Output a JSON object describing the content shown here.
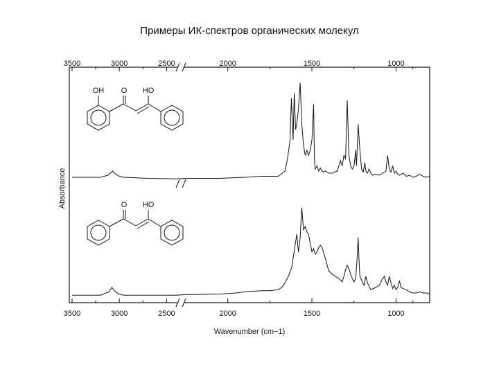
{
  "page": {
    "title": "Примеры ИК-спектров органических молекул"
  },
  "chart_data": {
    "type": "line",
    "title": "Примеры ИК-спектров органических молекул",
    "xlabel": "Wavenumber (cm−1)",
    "ylabel": "Absorbance",
    "x_ticks": [
      "3500",
      "3000",
      "2500",
      "2000",
      "1500",
      "1000"
    ],
    "x_tick_values": [
      3500,
      3000,
      2500,
      2000,
      1500,
      1000
    ],
    "axis_break_between": [
      2400,
      2250
    ],
    "xlim": [
      3500,
      800
    ],
    "grid": false,
    "series": [
      {
        "molecule": {
          "labels": [
            "OH",
            "O",
            "HO"
          ]
        },
        "x": [
          3500,
          3200,
          3120,
          3070,
          3040,
          3000,
          2950,
          2700,
          2400,
          2250,
          2050,
          1900,
          1800,
          1700,
          1660,
          1645,
          1630,
          1622,
          1612,
          1605,
          1597,
          1590,
          1580,
          1570,
          1560,
          1550,
          1540,
          1530,
          1520,
          1510,
          1500,
          1490,
          1485,
          1480,
          1470,
          1460,
          1450,
          1440,
          1430,
          1420,
          1400,
          1380,
          1350,
          1330,
          1320,
          1310,
          1300,
          1290,
          1280,
          1270,
          1260,
          1250,
          1240,
          1235,
          1225,
          1215,
          1205,
          1200,
          1195,
          1185,
          1180,
          1170,
          1160,
          1150,
          1140,
          1120,
          1100,
          1080,
          1060,
          1050,
          1040,
          1030,
          1020,
          1010,
          1000,
          990,
          980,
          960,
          940,
          920,
          900,
          880,
          860,
          840,
          820,
          800
        ],
        "y": [
          0.04,
          0.04,
          0.06,
          0.1,
          0.07,
          0.05,
          0.04,
          0.03,
          0.025,
          0.03,
          0.03,
          0.04,
          0.05,
          0.05,
          0.1,
          0.22,
          0.4,
          0.8,
          0.4,
          0.85,
          0.5,
          0.55,
          0.7,
          0.95,
          0.55,
          0.35,
          0.25,
          0.3,
          0.25,
          0.3,
          0.4,
          0.74,
          0.2,
          0.12,
          0.15,
          0.1,
          0.13,
          0.1,
          0.09,
          0.1,
          0.08,
          0.08,
          0.1,
          0.2,
          0.15,
          0.25,
          0.22,
          0.78,
          0.25,
          0.15,
          0.12,
          0.15,
          0.3,
          0.15,
          0.55,
          0.3,
          0.12,
          0.1,
          0.09,
          0.18,
          0.1,
          0.08,
          0.12,
          0.08,
          0.06,
          0.07,
          0.06,
          0.08,
          0.1,
          0.25,
          0.12,
          0.09,
          0.15,
          0.08,
          0.1,
          0.07,
          0.06,
          0.08,
          0.05,
          0.06,
          0.04,
          0.05,
          0.07,
          0.05,
          0.04,
          0.05
        ]
      },
      {
        "molecule": {
          "labels": [
            "O",
            "HO"
          ]
        },
        "x": [
          3500,
          3200,
          3110,
          3080,
          3060,
          3040,
          3000,
          2950,
          2700,
          2400,
          2250,
          2050,
          1950,
          1900,
          1800,
          1750,
          1700,
          1680,
          1660,
          1640,
          1620,
          1600,
          1590,
          1580,
          1570,
          1560,
          1550,
          1540,
          1530,
          1520,
          1510,
          1500,
          1490,
          1480,
          1470,
          1460,
          1450,
          1440,
          1420,
          1400,
          1380,
          1360,
          1340,
          1320,
          1310,
          1300,
          1290,
          1280,
          1270,
          1260,
          1250,
          1240,
          1235,
          1230,
          1225,
          1220,
          1215,
          1200,
          1190,
          1180,
          1170,
          1150,
          1120,
          1100,
          1080,
          1070,
          1060,
          1050,
          1040,
          1030,
          1020,
          1010,
          1000,
          990,
          980,
          970,
          960,
          940,
          920,
          900,
          880,
          860,
          840,
          820,
          800
        ],
        "y": [
          0.03,
          0.03,
          0.06,
          0.1,
          0.08,
          0.06,
          0.04,
          0.03,
          0.03,
          0.03,
          0.035,
          0.04,
          0.05,
          0.06,
          0.07,
          0.07,
          0.08,
          0.1,
          0.14,
          0.2,
          0.28,
          0.48,
          0.58,
          0.42,
          0.55,
          0.82,
          0.62,
          0.65,
          0.6,
          0.58,
          0.5,
          0.42,
          0.45,
          0.4,
          0.42,
          0.46,
          0.48,
          0.46,
          0.36,
          0.25,
          0.22,
          0.2,
          0.18,
          0.15,
          0.2,
          0.26,
          0.3,
          0.27,
          0.22,
          0.18,
          0.15,
          0.18,
          0.28,
          0.4,
          0.55,
          0.35,
          0.2,
          0.15,
          0.12,
          0.2,
          0.14,
          0.08,
          0.1,
          0.12,
          0.18,
          0.2,
          0.15,
          0.12,
          0.2,
          0.14,
          0.09,
          0.12,
          0.08,
          0.1,
          0.16,
          0.1,
          0.09,
          0.08,
          0.06,
          0.05,
          0.05,
          0.06,
          0.05,
          0.05,
          0.04
        ]
      }
    ]
  }
}
